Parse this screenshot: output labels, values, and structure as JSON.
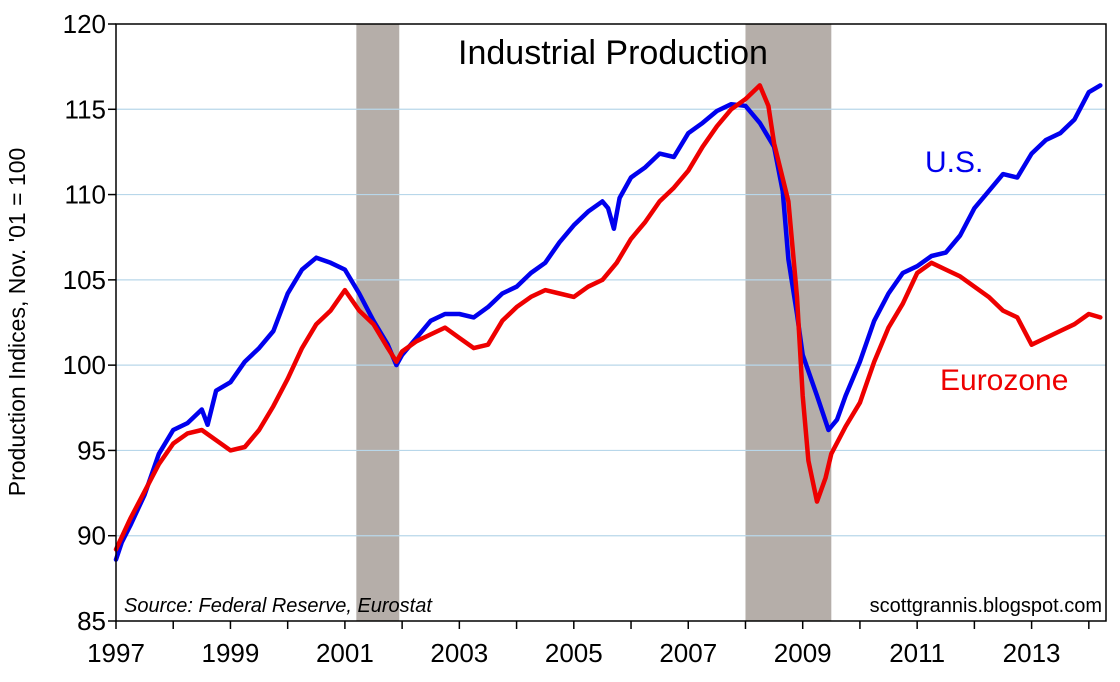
{
  "chart_data": {
    "type": "line",
    "title": "Industrial Production",
    "ylabel": "Production Indices, Nov. '01 = 100",
    "xlabel": "",
    "xlim": [
      1997,
      2014.3
    ],
    "ylim": [
      85,
      120
    ],
    "x_ticks": [
      1997,
      1999,
      2001,
      2003,
      2005,
      2007,
      2009,
      2011,
      2013
    ],
    "y_ticks": [
      85,
      90,
      95,
      100,
      105,
      110,
      115,
      120
    ],
    "grid": "horizontal",
    "legend": "inline labels",
    "source": "Source: Federal Reserve, Eurostat",
    "credit": "scottgrannis.blogspot.com",
    "recessions": [
      {
        "start": 2001.2,
        "end": 2001.95
      },
      {
        "start": 2008.0,
        "end": 2009.5
      }
    ],
    "series": [
      {
        "name": "U.S.",
        "color": "#0000ee",
        "points": [
          [
            1997.0,
            88.6
          ],
          [
            1997.1,
            89.6
          ],
          [
            1997.25,
            90.6
          ],
          [
            1997.5,
            92.4
          ],
          [
            1997.75,
            94.8
          ],
          [
            1998.0,
            96.2
          ],
          [
            1998.25,
            96.6
          ],
          [
            1998.5,
            97.4
          ],
          [
            1998.6,
            96.5
          ],
          [
            1998.75,
            98.5
          ],
          [
            1999.0,
            99.0
          ],
          [
            1999.25,
            100.2
          ],
          [
            1999.5,
            101.0
          ],
          [
            1999.75,
            102.0
          ],
          [
            2000.0,
            104.2
          ],
          [
            2000.25,
            105.6
          ],
          [
            2000.5,
            106.3
          ],
          [
            2000.75,
            106.0
          ],
          [
            2001.0,
            105.6
          ],
          [
            2001.25,
            104.2
          ],
          [
            2001.5,
            102.6
          ],
          [
            2001.75,
            101.2
          ],
          [
            2001.9,
            100.0
          ],
          [
            2002.0,
            100.6
          ],
          [
            2002.25,
            101.6
          ],
          [
            2002.5,
            102.6
          ],
          [
            2002.75,
            103.0
          ],
          [
            2003.0,
            103.0
          ],
          [
            2003.25,
            102.8
          ],
          [
            2003.5,
            103.4
          ],
          [
            2003.75,
            104.2
          ],
          [
            2004.0,
            104.6
          ],
          [
            2004.25,
            105.4
          ],
          [
            2004.5,
            106.0
          ],
          [
            2004.75,
            107.2
          ],
          [
            2005.0,
            108.2
          ],
          [
            2005.25,
            109.0
          ],
          [
            2005.5,
            109.6
          ],
          [
            2005.6,
            109.2
          ],
          [
            2005.7,
            108.0
          ],
          [
            2005.8,
            109.8
          ],
          [
            2006.0,
            111.0
          ],
          [
            2006.25,
            111.6
          ],
          [
            2006.5,
            112.4
          ],
          [
            2006.75,
            112.2
          ],
          [
            2007.0,
            113.6
          ],
          [
            2007.25,
            114.2
          ],
          [
            2007.5,
            114.9
          ],
          [
            2007.75,
            115.3
          ],
          [
            2008.0,
            115.2
          ],
          [
            2008.25,
            114.2
          ],
          [
            2008.5,
            112.8
          ],
          [
            2008.65,
            110.2
          ],
          [
            2008.75,
            106.2
          ],
          [
            2008.9,
            103.0
          ],
          [
            2009.0,
            100.6
          ],
          [
            2009.25,
            98.2
          ],
          [
            2009.45,
            96.2
          ],
          [
            2009.6,
            96.8
          ],
          [
            2009.75,
            98.2
          ],
          [
            2010.0,
            100.2
          ],
          [
            2010.25,
            102.6
          ],
          [
            2010.5,
            104.2
          ],
          [
            2010.75,
            105.4
          ],
          [
            2011.0,
            105.8
          ],
          [
            2011.25,
            106.4
          ],
          [
            2011.5,
            106.6
          ],
          [
            2011.75,
            107.6
          ],
          [
            2012.0,
            109.2
          ],
          [
            2012.25,
            110.2
          ],
          [
            2012.5,
            111.2
          ],
          [
            2012.75,
            111.0
          ],
          [
            2013.0,
            112.4
          ],
          [
            2013.25,
            113.2
          ],
          [
            2013.5,
            113.6
          ],
          [
            2013.75,
            114.4
          ],
          [
            2014.0,
            116.0
          ],
          [
            2014.2,
            116.4
          ]
        ]
      },
      {
        "name": "Eurozone",
        "color": "#ee0000",
        "points": [
          [
            1997.0,
            89.2
          ],
          [
            1997.25,
            91.0
          ],
          [
            1997.5,
            92.6
          ],
          [
            1997.75,
            94.2
          ],
          [
            1998.0,
            95.4
          ],
          [
            1998.25,
            96.0
          ],
          [
            1998.5,
            96.2
          ],
          [
            1998.75,
            95.6
          ],
          [
            1999.0,
            95.0
          ],
          [
            1999.25,
            95.2
          ],
          [
            1999.5,
            96.2
          ],
          [
            1999.75,
            97.6
          ],
          [
            2000.0,
            99.2
          ],
          [
            2000.25,
            101.0
          ],
          [
            2000.5,
            102.4
          ],
          [
            2000.75,
            103.2
          ],
          [
            2001.0,
            104.4
          ],
          [
            2001.25,
            103.2
          ],
          [
            2001.5,
            102.4
          ],
          [
            2001.75,
            101.0
          ],
          [
            2001.9,
            100.2
          ],
          [
            2002.0,
            100.8
          ],
          [
            2002.25,
            101.4
          ],
          [
            2002.5,
            101.8
          ],
          [
            2002.75,
            102.2
          ],
          [
            2003.0,
            101.6
          ],
          [
            2003.25,
            101.0
          ],
          [
            2003.5,
            101.2
          ],
          [
            2003.75,
            102.6
          ],
          [
            2004.0,
            103.4
          ],
          [
            2004.25,
            104.0
          ],
          [
            2004.5,
            104.4
          ],
          [
            2004.75,
            104.2
          ],
          [
            2005.0,
            104.0
          ],
          [
            2005.25,
            104.6
          ],
          [
            2005.5,
            105.0
          ],
          [
            2005.75,
            106.0
          ],
          [
            2006.0,
            107.4
          ],
          [
            2006.25,
            108.4
          ],
          [
            2006.5,
            109.6
          ],
          [
            2006.75,
            110.4
          ],
          [
            2007.0,
            111.4
          ],
          [
            2007.25,
            112.8
          ],
          [
            2007.5,
            114.0
          ],
          [
            2007.75,
            115.0
          ],
          [
            2008.0,
            115.6
          ],
          [
            2008.25,
            116.4
          ],
          [
            2008.4,
            115.2
          ],
          [
            2008.5,
            113.0
          ],
          [
            2008.75,
            109.6
          ],
          [
            2008.9,
            104.0
          ],
          [
            2009.0,
            98.2
          ],
          [
            2009.1,
            94.4
          ],
          [
            2009.25,
            92.0
          ],
          [
            2009.4,
            93.4
          ],
          [
            2009.5,
            94.8
          ],
          [
            2009.75,
            96.4
          ],
          [
            2010.0,
            97.8
          ],
          [
            2010.25,
            100.2
          ],
          [
            2010.5,
            102.2
          ],
          [
            2010.75,
            103.6
          ],
          [
            2011.0,
            105.4
          ],
          [
            2011.25,
            106.0
          ],
          [
            2011.5,
            105.6
          ],
          [
            2011.75,
            105.2
          ],
          [
            2012.0,
            104.6
          ],
          [
            2012.25,
            104.0
          ],
          [
            2012.5,
            103.2
          ],
          [
            2012.75,
            102.8
          ],
          [
            2013.0,
            101.2
          ],
          [
            2013.25,
            101.6
          ],
          [
            2013.5,
            102.0
          ],
          [
            2013.75,
            102.4
          ],
          [
            2014.0,
            103.0
          ],
          [
            2014.2,
            102.8
          ]
        ]
      }
    ]
  }
}
